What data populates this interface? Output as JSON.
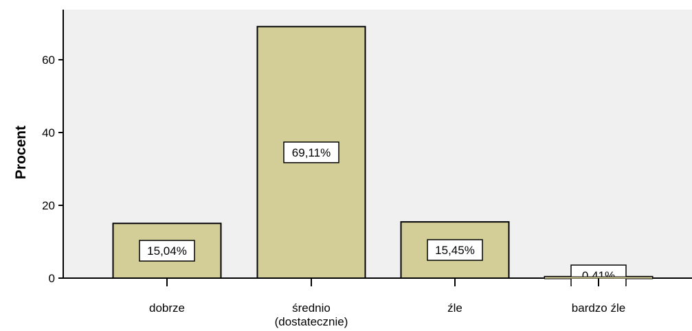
{
  "chart_data": {
    "type": "bar",
    "categories": [
      "dobrze",
      "średnio\n(dostatecznie)",
      "źle",
      "bardzo źle"
    ],
    "values": [
      15.04,
      69.11,
      15.45,
      0.41
    ],
    "data_labels": [
      "15,04%",
      "69,11%",
      "15,45%",
      "0,41%"
    ],
    "y_ticks": [
      "0",
      "20",
      "40",
      "60"
    ],
    "ylabel": "Procent",
    "xlabel": "",
    "ylim": [
      0,
      75
    ],
    "grid": false,
    "colors": {
      "plot_background": "#f0f0f0",
      "bar_fill": "#d3ce98",
      "bar_stroke": "#000000",
      "label_box": "#ffffff"
    }
  }
}
